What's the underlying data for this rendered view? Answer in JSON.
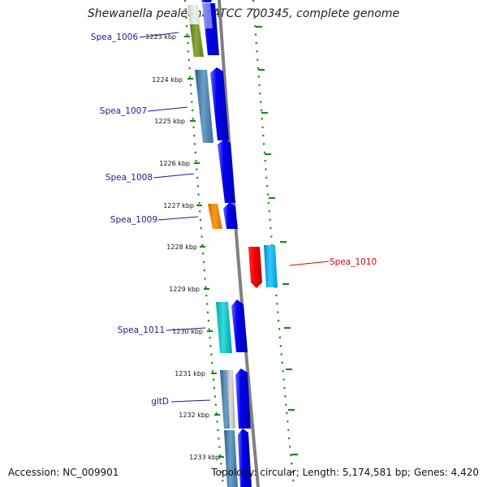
{
  "title": "Shewanella pealeana ATCC 700345, complete genome",
  "accession": "Accession: NC_009901",
  "topology": "Topology: circular; Length: 5,174,581 bp; Genes: 4,420",
  "colors": {
    "backbone": "#808080",
    "tick": "#1a8a1a",
    "label_blue": "#1a1aa0",
    "label_red": "#dd0000",
    "cds_blue": "#0000ee"
  },
  "scale_ticks": [
    {
      "label": "1223 kbp"
    },
    {
      "label": "1224 kbp"
    },
    {
      "label": "1225 kbp"
    },
    {
      "label": "1226 kbp"
    },
    {
      "label": "1227 kbp"
    },
    {
      "label": "1228 kbp"
    },
    {
      "label": "1229 kbp"
    },
    {
      "label": "1230 kbp"
    },
    {
      "label": "1231 kbp"
    },
    {
      "label": "1232 kbp"
    },
    {
      "label": "1233 kbp"
    }
  ],
  "gene_labels": [
    {
      "text": "Spea_1006",
      "color": "#1a1aa0"
    },
    {
      "text": "Spea_1007",
      "color": "#1a1aa0"
    },
    {
      "text": "Spea_1008",
      "color": "#1a1aa0"
    },
    {
      "text": "Spea_1009",
      "color": "#1a1aa0"
    },
    {
      "text": "Spea_1010",
      "color": "#dd0000"
    },
    {
      "text": "Spea_1011",
      "color": "#1a1aa0"
    },
    {
      "text": "gltD",
      "color": "#1a1aa0"
    }
  ]
}
